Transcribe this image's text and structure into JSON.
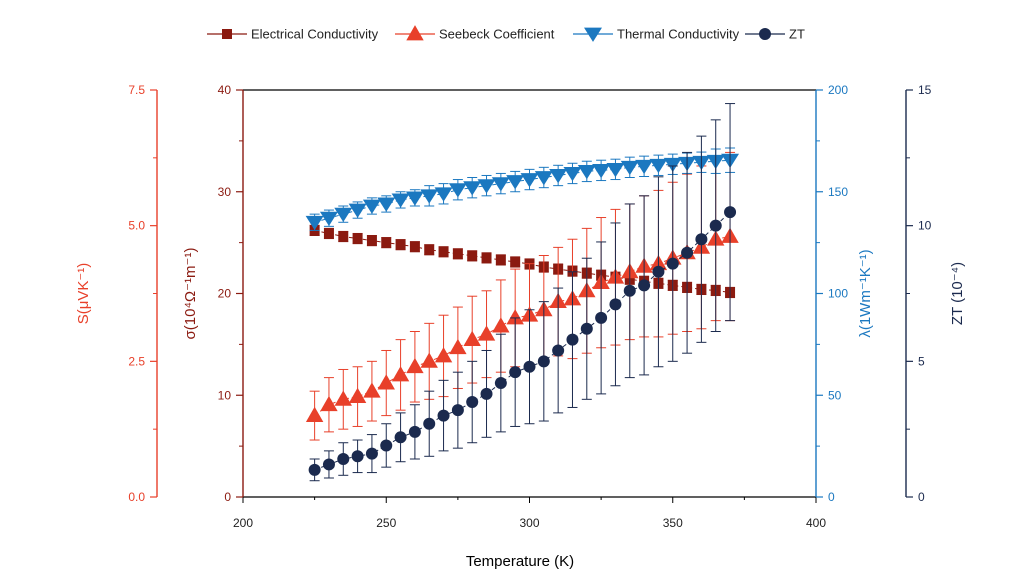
{
  "colors": {
    "sigma": "#8b1a10",
    "seebeck": "#e8402a",
    "lambda": "#1b78c0",
    "zt": "#1b2a4e",
    "frame": "#000000"
  },
  "chart_data": {
    "type": "scatter",
    "title": "",
    "xlabel": "Temperature (K)",
    "xlim": [
      200,
      400
    ],
    "xticks": [
      "200",
      "250",
      "300",
      "350",
      "400"
    ],
    "axes": {
      "seebeck": {
        "label": "S(μVK⁻¹)",
        "range": [
          0,
          7.5
        ],
        "ticks": [
          "0.0",
          "2.5",
          "5.0",
          "7.5"
        ]
      },
      "sigma": {
        "label": "σ(10⁴Ω⁻¹m⁻¹)",
        "range": [
          0,
          40
        ],
        "ticks": [
          "0",
          "10",
          "20",
          "30",
          "40"
        ]
      },
      "lambda": {
        "label": "λ(1Wm⁻¹K⁻¹)",
        "range": [
          0,
          200
        ],
        "ticks": [
          "0",
          "50",
          "100",
          "150",
          "200"
        ]
      },
      "zt": {
        "label": "ZT (10⁻⁴)",
        "range": [
          0,
          15
        ],
        "ticks": [
          "0",
          "5",
          "10",
          "15"
        ]
      }
    },
    "legend_position": "top",
    "x": [
      225,
      230,
      235,
      240,
      245,
      250,
      255,
      260,
      265,
      270,
      275,
      280,
      285,
      290,
      295,
      300,
      305,
      310,
      315,
      320,
      325,
      330,
      335,
      340,
      345,
      350,
      355,
      360,
      365,
      370
    ],
    "series": [
      {
        "name": "Electrical Conductivity",
        "key": "sigma",
        "axis": "sigma",
        "marker": "square",
        "values": [
          26.2,
          25.9,
          25.6,
          25.4,
          25.2,
          25.0,
          24.8,
          24.6,
          24.3,
          24.1,
          23.9,
          23.7,
          23.5,
          23.3,
          23.1,
          22.9,
          22.6,
          22.4,
          22.2,
          22.0,
          21.8,
          21.6,
          21.4,
          21.2,
          21.0,
          20.8,
          20.6,
          20.4,
          20.3,
          20.1
        ],
        "errors": [
          0.5,
          0.5,
          0.5,
          0.5,
          0.5,
          0.5,
          0.5,
          0.5,
          0.5,
          0.5,
          0.5,
          0.5,
          0.5,
          0.5,
          0.5,
          0.5,
          0.5,
          0.5,
          0.5,
          0.5,
          0.5,
          0.5,
          0.5,
          0.5,
          0.5,
          0.5,
          0.5,
          0.5,
          0.5,
          0.5
        ]
      },
      {
        "name": "Seebeck Coefficient",
        "key": "seebeck",
        "axis": "seebeck",
        "marker": "triangle-up",
        "values": [
          1.5,
          1.7,
          1.8,
          1.85,
          1.95,
          2.1,
          2.25,
          2.4,
          2.5,
          2.6,
          2.75,
          2.9,
          3.0,
          3.15,
          3.3,
          3.35,
          3.45,
          3.6,
          3.65,
          3.8,
          3.95,
          4.05,
          4.15,
          4.25,
          4.3,
          4.4,
          4.5,
          4.6,
          4.75,
          4.8
        ],
        "errors": [
          0.45,
          0.5,
          0.55,
          0.55,
          0.55,
          0.6,
          0.65,
          0.65,
          0.7,
          0.75,
          0.75,
          0.8,
          0.8,
          0.85,
          0.9,
          0.95,
          1.0,
          1.0,
          1.1,
          1.15,
          1.2,
          1.25,
          1.25,
          1.3,
          1.35,
          1.4,
          1.45,
          1.5,
          1.5,
          1.55
        ]
      },
      {
        "name": "Thermal Conductivity",
        "key": "lambda",
        "axis": "lambda",
        "marker": "triangle-down",
        "values": [
          135,
          137,
          139,
          141,
          143,
          144,
          146,
          147,
          148,
          149,
          151,
          152,
          153,
          154,
          155,
          156,
          157,
          158,
          159,
          160,
          160.5,
          161,
          162,
          162.5,
          163,
          163.5,
          164,
          164.5,
          165,
          165.5
        ],
        "errors": [
          4,
          4,
          4,
          4,
          4,
          4,
          4,
          4,
          5,
          5,
          5,
          5,
          5,
          5,
          5,
          5,
          5,
          5,
          5,
          5,
          5,
          5,
          5,
          5,
          5,
          5,
          5,
          5,
          6,
          6
        ]
      },
      {
        "name": "ZT",
        "key": "zt",
        "axis": "zt",
        "marker": "circle",
        "values": [
          1.0,
          1.2,
          1.4,
          1.5,
          1.6,
          1.9,
          2.2,
          2.4,
          2.7,
          3.0,
          3.2,
          3.5,
          3.8,
          4.2,
          4.6,
          4.8,
          5.0,
          5.4,
          5.8,
          6.2,
          6.6,
          7.1,
          7.6,
          7.8,
          8.3,
          8.6,
          9.0,
          9.5,
          10.0,
          10.5
        ],
        "errors": [
          0.4,
          0.5,
          0.6,
          0.6,
          0.7,
          0.8,
          0.9,
          1.0,
          1.2,
          1.3,
          1.4,
          1.5,
          1.6,
          1.8,
          2.0,
          2.1,
          2.2,
          2.3,
          2.5,
          2.6,
          2.8,
          3.0,
          3.2,
          3.3,
          3.5,
          3.6,
          3.7,
          3.8,
          3.9,
          4.0
        ]
      }
    ]
  }
}
